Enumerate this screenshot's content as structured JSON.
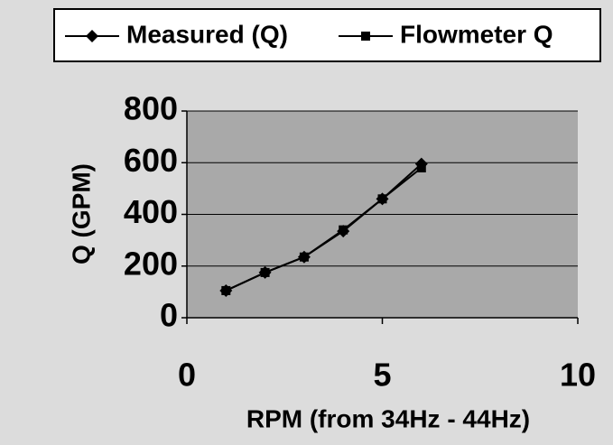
{
  "chart_data": {
    "type": "line",
    "x_label": "RPM (from 34Hz - 44Hz)",
    "y_label": "Q (GPM)",
    "x": [
      1,
      2,
      3,
      4,
      5,
      6
    ],
    "series": [
      {
        "name": "Measured (Q)",
        "color": "#000000",
        "marker": "diamond",
        "values": [
          105,
          175,
          235,
          335,
          460,
          595
        ]
      },
      {
        "name": "Flowmeter Q",
        "color": "#000000",
        "marker": "square",
        "values": [
          105,
          175,
          235,
          340,
          460,
          580
        ]
      }
    ],
    "xlim": [
      0,
      10
    ],
    "xticks": [
      0,
      5,
      10
    ],
    "ylim": [
      0,
      800
    ],
    "yticks": [
      0,
      200,
      400,
      600,
      800
    ],
    "grid": true,
    "legend": "top"
  }
}
